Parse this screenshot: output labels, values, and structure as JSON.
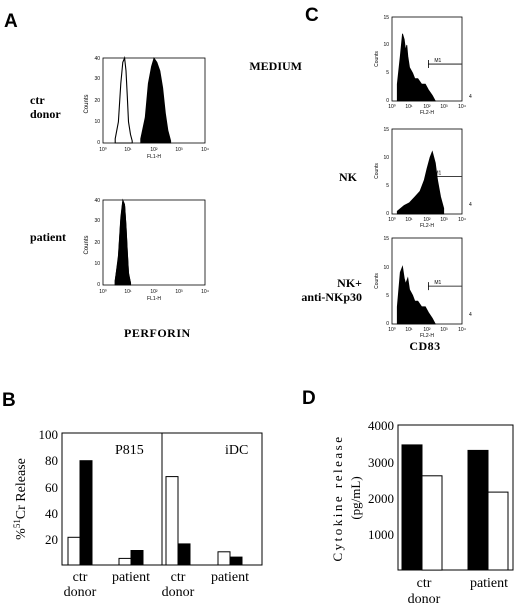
{
  "panels": {
    "A": {
      "letter": "A",
      "rows": [
        {
          "label_lines": [
            "ctr",
            "donor"
          ],
          "ymax": "40",
          "yticks": [
            "0",
            "10",
            "20",
            "30",
            "40"
          ],
          "ylabel": "Counts"
        },
        {
          "label_lines": [
            "patient"
          ],
          "ymax": "40",
          "yticks": [
            "0",
            "10",
            "20",
            "30",
            "40"
          ],
          "ylabel": "Counts"
        }
      ],
      "xticks": [
        "10⁰",
        "10¹",
        "10²",
        "10³",
        "10⁴"
      ],
      "xlabel": "FL1-H",
      "marker": "PERFORIN"
    },
    "C": {
      "letter": "C",
      "rows": [
        {
          "label_lines": [
            "MEDIUM"
          ]
        },
        {
          "label_lines": [
            "NK"
          ]
        },
        {
          "label_lines": [
            "NK+",
            "anti-NKp30"
          ]
        }
      ],
      "yticks": [
        "0",
        "5",
        "10",
        "15"
      ],
      "ylabel": "Counts",
      "xticks": [
        "10⁰",
        "10¹",
        "10²",
        "10³",
        "10⁴"
      ],
      "xlabel": "FL2-H",
      "gate": "M1",
      "right_tick": "4",
      "marker": "CD83"
    },
    "B": {
      "letter": "B",
      "ylabel": "% 51Cr Release",
      "ylabel_prefix": "%",
      "ylabel_sup": "51",
      "ylabel_rest": "Cr Release",
      "subpanel_labels": [
        "P815",
        "iDC"
      ],
      "yticks": [
        "20",
        "40",
        "60",
        "80",
        "100"
      ],
      "group_labels": [
        [
          "ctr",
          "donor"
        ],
        [
          "patient"
        ],
        [
          "ctr",
          "donor"
        ],
        [
          "patient"
        ]
      ]
    },
    "D": {
      "letter": "D",
      "ylabel_lines": [
        "Cytokine release",
        "(pg/mL)"
      ],
      "yticks": [
        "1000",
        "2000",
        "3000",
        "4000"
      ],
      "group_labels": [
        [
          "ctr",
          "donor"
        ],
        [
          "patient"
        ]
      ]
    }
  },
  "chart_data": [
    {
      "panel": "A",
      "type": "area",
      "title": "",
      "xlabel": "FL1-H",
      "ylabel": "Counts",
      "x_scale": "log",
      "xlim": [
        1,
        10000
      ],
      "ylim": [
        0,
        40
      ],
      "series": [
        {
          "name": "",
          "row": "ctr donor",
          "style": "open",
          "x": [
            3,
            4,
            5,
            6,
            7,
            8,
            9,
            10,
            12,
            14
          ],
          "y": [
            2,
            10,
            28,
            38,
            40,
            34,
            22,
            10,
            4,
            1
          ]
        },
        {
          "name": "",
          "row": "ctr donor",
          "style": "filled",
          "x": [
            30,
            45,
            60,
            80,
            100,
            130,
            170,
            220,
            280,
            350,
            450
          ],
          "y": [
            2,
            12,
            28,
            36,
            40,
            38,
            34,
            26,
            14,
            6,
            1
          ]
        },
        {
          "name": "",
          "row": "patient",
          "style": "filled",
          "x": [
            3,
            4,
            5,
            6,
            7,
            8,
            9,
            10,
            12
          ],
          "y": [
            2,
            14,
            32,
            40,
            38,
            28,
            16,
            6,
            1
          ]
        },
        {
          "name": "",
          "row": "patient",
          "style": "open",
          "x": [
            3,
            4,
            5,
            6,
            7,
            8,
            9,
            10,
            12
          ],
          "y": [
            2,
            12,
            30,
            39,
            37,
            27,
            15,
            5,
            1
          ]
        }
      ]
    },
    {
      "panel": "C",
      "type": "area",
      "title": "",
      "xlabel": "FL2-H",
      "ylabel": "Counts",
      "x_scale": "log",
      "xlim": [
        1,
        10000
      ],
      "ylim": [
        0,
        15
      ],
      "series": [
        {
          "name": "",
          "row": "MEDIUM",
          "x": [
            2,
            3,
            4,
            5,
            6,
            7,
            8,
            10,
            15,
            20,
            30,
            50,
            80,
            120,
            200,
            300
          ],
          "y": [
            3,
            8,
            12,
            11,
            9,
            10,
            8,
            6,
            5,
            4,
            4,
            3,
            3,
            2,
            1,
            0
          ]
        },
        {
          "name": "",
          "row": "NK",
          "x": [
            2,
            5,
            10,
            20,
            40,
            70,
            100,
            150,
            200,
            300,
            400,
            600,
            900
          ],
          "y": [
            0.5,
            1.5,
            2,
            3,
            4,
            6,
            8,
            10,
            11,
            9,
            6,
            3,
            1
          ]
        },
        {
          "name": "",
          "row": "NK+ anti-NKp30",
          "x": [
            2,
            3,
            4,
            5,
            6,
            8,
            10,
            15,
            20,
            30,
            50,
            80,
            120,
            200,
            300
          ],
          "y": [
            3,
            9,
            10,
            8,
            7,
            8,
            6,
            5,
            4,
            4,
            3,
            3,
            2,
            1,
            0
          ]
        }
      ],
      "gate_M1": [
        {
          "row": "MEDIUM",
          "from": 120,
          "to": 10000
        },
        {
          "row": "NK",
          "from": 120,
          "to": 10000
        },
        {
          "row": "NK+ anti-NKp30",
          "from": 120,
          "to": 10000
        }
      ]
    },
    {
      "panel": "B",
      "type": "bar",
      "title": "",
      "xlabel": "",
      "ylabel": "% 51Cr Release",
      "ylim": [
        0,
        100
      ],
      "subpanels": [
        {
          "name": "P815",
          "categories": [
            "ctr donor",
            "patient"
          ],
          "series": [
            {
              "name": "",
              "style": "open",
              "values": [
                21,
                5
              ]
            },
            {
              "name": "",
              "style": "filled",
              "values": [
                79,
                11
              ]
            }
          ]
        },
        {
          "name": "iDC",
          "categories": [
            "ctr donor",
            "patient"
          ],
          "series": [
            {
              "name": "",
              "style": "open",
              "values": [
                67,
                10
              ]
            },
            {
              "name": "",
              "style": "filled",
              "values": [
                16,
                6
              ]
            }
          ]
        }
      ]
    },
    {
      "panel": "D",
      "type": "bar",
      "title": "",
      "xlabel": "",
      "ylabel": "Cytokine release (pg/mL)",
      "ylim": [
        0,
        4000
      ],
      "categories": [
        "ctr donor",
        "patient"
      ],
      "series": [
        {
          "name": "",
          "style": "filled",
          "values": [
            3450,
            3300
          ]
        },
        {
          "name": "",
          "style": "open",
          "values": [
            2600,
            2150
          ]
        }
      ]
    }
  ]
}
